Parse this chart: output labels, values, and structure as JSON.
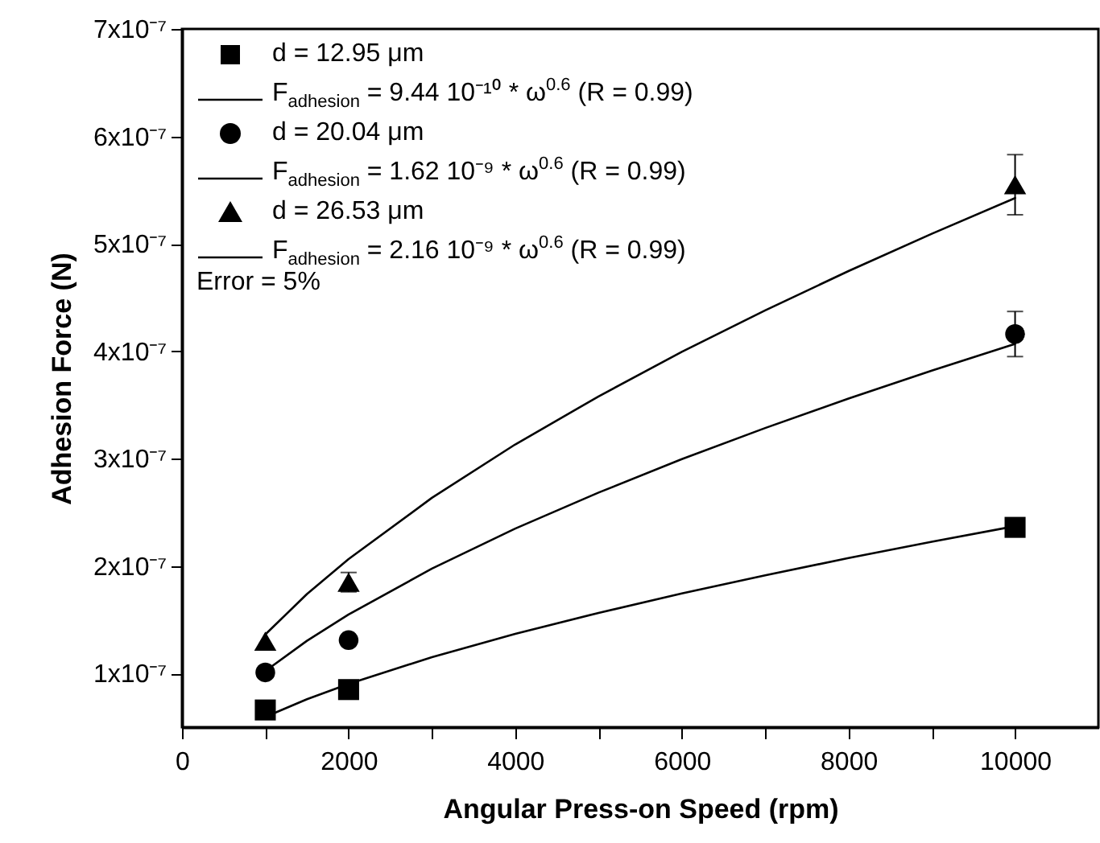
{
  "chart_data": {
    "type": "scatter",
    "xlabel": "Angular Press-on Speed (rpm)",
    "ylabel": "Adhesion Force (N)",
    "xlim": [
      0,
      11000
    ],
    "ylim": [
      5e-08,
      7e-07
    ],
    "xticks": [
      0,
      {
        "value": 1000,
        "label": null
      },
      2000,
      {
        "value": 3000,
        "label": null
      },
      4000,
      {
        "value": 5000,
        "label": null
      },
      6000,
      {
        "value": 7000,
        "label": null
      },
      8000,
      {
        "value": 9000,
        "label": null
      },
      10000
    ],
    "yticks": [
      {
        "value": 1e-07,
        "label": "1x10⁻⁷"
      },
      {
        "value": 2e-07,
        "label": "2x10⁻⁷"
      },
      {
        "value": 3e-07,
        "label": "3x10⁻⁷"
      },
      {
        "value": 4e-07,
        "label": "4x10⁻⁷"
      },
      {
        "value": 5e-07,
        "label": "5x10⁻⁷"
      },
      {
        "value": 6e-07,
        "label": "6x10⁻⁷"
      },
      {
        "value": 7e-07,
        "label": "7x10⁻⁷"
      }
    ],
    "grid": false,
    "legend": "top left",
    "annotations": [
      "Error = 5%"
    ],
    "series": [
      {
        "name": "d = 12.95 μm",
        "type": "scatter",
        "marker": "square",
        "color": "#000000",
        "x": [
          1000,
          2000,
          10000
        ],
        "values": [
          6.6e-08,
          8.5e-08,
          2.36e-07
        ],
        "errors": [
          null,
          null,
          null
        ]
      },
      {
        "name": "F$_{adhesion}$ = 9.44 10⁻¹⁰ * ω$^{0.6}$ (R = 0.99)",
        "type": "line",
        "marker": "none",
        "line_style": "solid",
        "color": "#000000",
        "x": [
          1000,
          1500,
          2000,
          3000,
          4000,
          5000,
          6000,
          7000,
          8000,
          9000,
          10000
        ],
        "values": [
          5.96e-08,
          7.6e-08,
          9.03e-08,
          1.152e-07,
          1.369e-07,
          1.564e-07,
          1.745e-07,
          1.914e-07,
          2.074e-07,
          2.226e-07,
          2.371e-07
        ]
      },
      {
        "name": "d = 20.04 μm",
        "type": "scatter",
        "marker": "circle",
        "color": "#000000",
        "x": [
          1000,
          2000,
          10000
        ],
        "values": [
          1.01e-07,
          1.31e-07,
          4.16e-07
        ],
        "errors": [
          null,
          null,
          2.1e-08
        ]
      },
      {
        "name": "F$_{adhesion}$ = 1.62 10⁻⁹ * ω$^{0.6}$ (R = 0.99)",
        "type": "line",
        "marker": "none",
        "line_style": "solid",
        "color": "#000000",
        "x": [
          1000,
          1500,
          2000,
          3000,
          4000,
          5000,
          6000,
          7000,
          8000,
          9000,
          10000
        ],
        "values": [
          1.022e-07,
          1.304e-07,
          1.549e-07,
          1.976e-07,
          2.349e-07,
          2.684e-07,
          2.995e-07,
          3.285e-07,
          3.559e-07,
          3.82e-07,
          4.069e-07
        ]
      },
      {
        "name": "d = 26.53 μm",
        "type": "scatter",
        "marker": "triangle",
        "color": "#000000",
        "x": [
          1000,
          2000,
          10000
        ],
        "values": [
          1.3e-07,
          1.85e-07,
          5.55e-07
        ],
        "errors": [
          null,
          9e-09,
          2.8e-08
        ]
      },
      {
        "name": "F$_{adhesion}$ = 2.16 10⁻⁹ * ω$^{0.6}$ (R = 0.99)",
        "type": "line",
        "marker": "none",
        "line_style": "solid",
        "color": "#000000",
        "x": [
          1000,
          1500,
          2000,
          3000,
          4000,
          5000,
          6000,
          7000,
          8000,
          9000,
          10000
        ],
        "values": [
          1.363e-07,
          1.739e-07,
          2.065e-07,
          2.635e-07,
          3.132e-07,
          3.579e-07,
          3.994e-07,
          4.38e-07,
          4.746e-07,
          5.093e-07,
          5.426e-07
        ]
      }
    ]
  }
}
